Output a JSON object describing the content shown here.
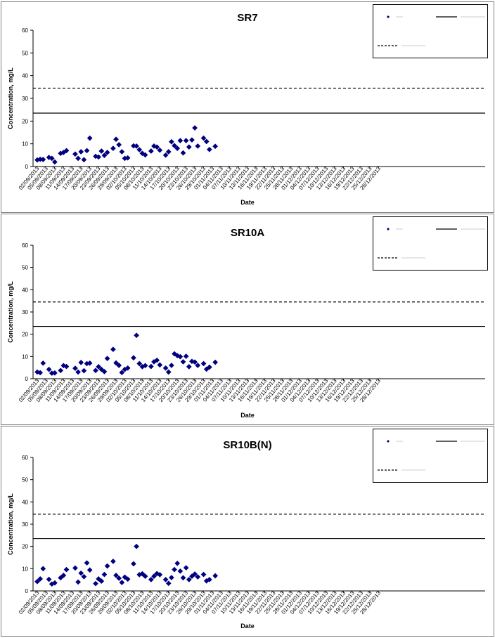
{
  "chart_data": [
    {
      "type": "scatter",
      "title": "SR7",
      "xlabel": "Date",
      "ylabel": "Concentration, mg/L",
      "ylim": [
        0,
        60
      ],
      "yticks": [
        0,
        10,
        20,
        30,
        40,
        50,
        60
      ],
      "grid": false,
      "legend_position": "top-right",
      "xticks": [
        "02/09/2013",
        "05/09/2013",
        "08/09/2013",
        "11/09/2013",
        "14/09/2013",
        "17/09/2013",
        "20/09/2013",
        "23/09/2013",
        "26/09/2013",
        "29/09/2013",
        "02/10/2013",
        "05/10/2013",
        "08/10/2013",
        "11/10/2013",
        "14/10/2013",
        "17/10/2013",
        "20/10/2013",
        "23/10/2013",
        "26/10/2013",
        "29/10/2013",
        "01/11/2013",
        "04/11/2013",
        "07/11/2013",
        "10/11/2013",
        "13/11/2013",
        "16/11/2013",
        "19/11/2013",
        "22/11/2013",
        "25/11/2013",
        "28/11/2013",
        "01/12/2013",
        "04/12/2013",
        "07/12/2013",
        "10/12/2013",
        "13/12/2013",
        "16/12/2013",
        "19/12/2013",
        "22/12/2013",
        "25/12/2013",
        "28/12/2013"
      ],
      "reference_lines": [
        {
          "style": "dashed",
          "value": 34.5
        },
        {
          "style": "solid",
          "value": 23.5
        }
      ],
      "series": [
        {
          "marker": "diamond",
          "color": "#000080",
          "points": [
            {
              "x": "02/09/2013",
              "y": 2.9
            },
            {
              "x": "03/09/2013",
              "y": 3.2
            },
            {
              "x": "04/09/2013",
              "y": 3.1
            },
            {
              "x": "06/09/2013",
              "y": 4.0
            },
            {
              "x": "07/09/2013",
              "y": 3.6
            },
            {
              "x": "08/09/2013",
              "y": 2.0
            },
            {
              "x": "10/09/2013",
              "y": 5.8
            },
            {
              "x": "11/09/2013",
              "y": 6.2
            },
            {
              "x": "12/09/2013",
              "y": 7.0
            },
            {
              "x": "15/09/2013",
              "y": 5.5
            },
            {
              "x": "16/09/2013",
              "y": 3.6
            },
            {
              "x": "17/09/2013",
              "y": 6.5
            },
            {
              "x": "18/09/2013",
              "y": 3.0
            },
            {
              "x": "19/09/2013",
              "y": 7.0
            },
            {
              "x": "20/09/2013",
              "y": 12.5
            },
            {
              "x": "22/09/2013",
              "y": 4.5
            },
            {
              "x": "23/09/2013",
              "y": 4.2
            },
            {
              "x": "24/09/2013",
              "y": 6.8
            },
            {
              "x": "25/09/2013",
              "y": 4.9
            },
            {
              "x": "26/09/2013",
              "y": 6.2
            },
            {
              "x": "28/09/2013",
              "y": 8.0
            },
            {
              "x": "29/09/2013",
              "y": 12.0
            },
            {
              "x": "30/09/2013",
              "y": 9.6
            },
            {
              "x": "01/10/2013",
              "y": 6.5
            },
            {
              "x": "02/10/2013",
              "y": 3.6
            },
            {
              "x": "03/10/2013",
              "y": 3.8
            },
            {
              "x": "05/10/2013",
              "y": 9.1
            },
            {
              "x": "06/10/2013",
              "y": 9.0
            },
            {
              "x": "07/10/2013",
              "y": 7.4
            },
            {
              "x": "08/10/2013",
              "y": 5.8
            },
            {
              "x": "09/10/2013",
              "y": 5.1
            },
            {
              "x": "11/10/2013",
              "y": 6.8
            },
            {
              "x": "12/10/2013",
              "y": 9.0
            },
            {
              "x": "13/10/2013",
              "y": 8.6
            },
            {
              "x": "14/10/2013",
              "y": 7.2
            },
            {
              "x": "16/10/2013",
              "y": 5.0
            },
            {
              "x": "17/10/2013",
              "y": 6.5
            },
            {
              "x": "18/10/2013",
              "y": 10.9
            },
            {
              "x": "19/10/2013",
              "y": 9.2
            },
            {
              "x": "20/10/2013",
              "y": 8.0
            },
            {
              "x": "21/10/2013",
              "y": 11.4
            },
            {
              "x": "22/10/2013",
              "y": 6.0
            },
            {
              "x": "23/10/2013",
              "y": 11.4
            },
            {
              "x": "24/10/2013",
              "y": 8.6
            },
            {
              "x": "25/10/2013",
              "y": 11.7
            },
            {
              "x": "26/10/2013",
              "y": 17.0
            },
            {
              "x": "27/10/2013",
              "y": 9.0
            },
            {
              "x": "29/10/2013",
              "y": 12.5
            },
            {
              "x": "30/10/2013",
              "y": 11.0
            },
            {
              "x": "31/10/2013",
              "y": 7.5
            },
            {
              "x": "02/11/2013",
              "y": 8.9
            }
          ]
        }
      ]
    },
    {
      "type": "scatter",
      "title": "SR10A",
      "xlabel": "Date",
      "ylabel": "Concentration, mg/L",
      "ylim": [
        0,
        60
      ],
      "yticks": [
        0,
        10,
        20,
        30,
        40,
        50,
        60
      ],
      "grid": false,
      "legend_position": "top-right",
      "xticks": [
        "02/09/2013",
        "05/09/2013",
        "08/09/2013",
        "11/09/2013",
        "14/09/2013",
        "17/09/2013",
        "20/09/2013",
        "23/09/2013",
        "26/09/2013",
        "29/09/2013",
        "02/10/2013",
        "05/10/2013",
        "08/10/2013",
        "11/10/2013",
        "14/10/2013",
        "17/10/2013",
        "20/10/2013",
        "23/10/2013",
        "26/10/2013",
        "29/10/2013",
        "01/11/2013",
        "04/11/2013",
        "07/11/2013",
        "10/11/2013",
        "13/11/2013",
        "16/11/2013",
        "19/11/2013",
        "22/11/2013",
        "25/11/2013",
        "28/11/2013",
        "01/12/2013",
        "04/12/2013",
        "07/12/2013",
        "10/12/2013",
        "13/12/2013",
        "16/12/2013",
        "19/12/2013",
        "22/12/2013",
        "25/12/2013",
        "28/12/2013"
      ],
      "reference_lines": [
        {
          "style": "dashed",
          "value": 34.5
        },
        {
          "style": "solid",
          "value": 23.5
        }
      ],
      "series": [
        {
          "marker": "diamond",
          "color": "#000080",
          "points": [
            {
              "x": "02/09/2013",
              "y": 3.0
            },
            {
              "x": "03/09/2013",
              "y": 2.7
            },
            {
              "x": "04/09/2013",
              "y": 7.0
            },
            {
              "x": "06/09/2013",
              "y": 4.2
            },
            {
              "x": "07/09/2013",
              "y": 2.5
            },
            {
              "x": "08/09/2013",
              "y": 2.6
            },
            {
              "x": "10/09/2013",
              "y": 3.7
            },
            {
              "x": "11/09/2013",
              "y": 5.9
            },
            {
              "x": "12/09/2013",
              "y": 5.5
            },
            {
              "x": "15/09/2013",
              "y": 4.7
            },
            {
              "x": "16/09/2013",
              "y": 3.0
            },
            {
              "x": "17/09/2013",
              "y": 7.3
            },
            {
              "x": "18/09/2013",
              "y": 3.6
            },
            {
              "x": "19/09/2013",
              "y": 6.8
            },
            {
              "x": "20/09/2013",
              "y": 7.0
            },
            {
              "x": "22/09/2013",
              "y": 3.7
            },
            {
              "x": "23/09/2013",
              "y": 5.4
            },
            {
              "x": "24/09/2013",
              "y": 4.2
            },
            {
              "x": "25/09/2013",
              "y": 3.2
            },
            {
              "x": "26/09/2013",
              "y": 9.1
            },
            {
              "x": "28/09/2013",
              "y": 13.2
            },
            {
              "x": "29/09/2013",
              "y": 7.1
            },
            {
              "x": "30/09/2013",
              "y": 6.0
            },
            {
              "x": "01/10/2013",
              "y": 2.8
            },
            {
              "x": "02/10/2013",
              "y": 4.2
            },
            {
              "x": "03/10/2013",
              "y": 4.8
            },
            {
              "x": "05/10/2013",
              "y": 9.4
            },
            {
              "x": "06/10/2013",
              "y": 19.5
            },
            {
              "x": "07/10/2013",
              "y": 6.8
            },
            {
              "x": "08/10/2013",
              "y": 5.4
            },
            {
              "x": "09/10/2013",
              "y": 5.9
            },
            {
              "x": "11/10/2013",
              "y": 5.5
            },
            {
              "x": "12/10/2013",
              "y": 7.6
            },
            {
              "x": "13/10/2013",
              "y": 8.3
            },
            {
              "x": "14/10/2013",
              "y": 6.2
            },
            {
              "x": "16/10/2013",
              "y": 4.8
            },
            {
              "x": "17/10/2013",
              "y": 3.0
            },
            {
              "x": "18/10/2013",
              "y": 6.0
            },
            {
              "x": "19/10/2013",
              "y": 11.2
            },
            {
              "x": "20/10/2013",
              "y": 10.4
            },
            {
              "x": "21/10/2013",
              "y": 9.9
            },
            {
              "x": "22/10/2013",
              "y": 7.6
            },
            {
              "x": "23/10/2013",
              "y": 10.1
            },
            {
              "x": "24/10/2013",
              "y": 5.4
            },
            {
              "x": "25/10/2013",
              "y": 7.8
            },
            {
              "x": "26/10/2013",
              "y": 7.5
            },
            {
              "x": "27/10/2013",
              "y": 6.0
            },
            {
              "x": "29/10/2013",
              "y": 6.8
            },
            {
              "x": "30/10/2013",
              "y": 4.3
            },
            {
              "x": "31/10/2013",
              "y": 5.2
            },
            {
              "x": "02/11/2013",
              "y": 7.4
            }
          ]
        }
      ]
    },
    {
      "type": "scatter",
      "title": "SR10B(N)",
      "xlabel": "Date",
      "ylabel": "Concentration, mg/L",
      "ylim": [
        0,
        60
      ],
      "yticks": [
        0,
        10,
        20,
        30,
        40,
        50,
        60
      ],
      "grid": false,
      "legend_position": "top-right",
      "xticks": [
        "02/09/2013",
        "05/09/2013",
        "08/09/2013",
        "11/09/2013",
        "14/09/2013",
        "17/09/2013",
        "20/09/2013",
        "23/09/2013",
        "26/09/2013",
        "29/09/2013",
        "02/10/2013",
        "05/10/2013",
        "08/10/2013",
        "11/10/2013",
        "14/10/2013",
        "17/10/2013",
        "20/10/2013",
        "23/10/2013",
        "26/10/2013",
        "29/10/2013",
        "01/11/2013",
        "04/11/2013",
        "07/11/2013",
        "10/11/2013",
        "13/11/2013",
        "16/11/2013",
        "19/11/2013",
        "22/11/2013",
        "25/11/2013",
        "28/11/2013",
        "01/12/2013",
        "04/12/2013",
        "07/12/2013",
        "10/12/2013",
        "13/12/2013",
        "16/12/2013",
        "19/12/2013",
        "22/12/2013",
        "25/12/2013",
        "28/12/2013"
      ],
      "reference_lines": [
        {
          "style": "dashed",
          "value": 34.5
        },
        {
          "style": "solid",
          "value": 23.5
        }
      ],
      "series": [
        {
          "marker": "diamond",
          "color": "#000080",
          "points": [
            {
              "x": "02/09/2013",
              "y": 4.2
            },
            {
              "x": "03/09/2013",
              "y": 5.4
            },
            {
              "x": "04/09/2013",
              "y": 10.0
            },
            {
              "x": "06/09/2013",
              "y": 5.2
            },
            {
              "x": "07/09/2013",
              "y": 3.1
            },
            {
              "x": "08/09/2013",
              "y": 3.6
            },
            {
              "x": "10/09/2013",
              "y": 5.9
            },
            {
              "x": "11/09/2013",
              "y": 7.0
            },
            {
              "x": "12/09/2013",
              "y": 9.6
            },
            {
              "x": "15/09/2013",
              "y": 10.3
            },
            {
              "x": "16/09/2013",
              "y": 4.0
            },
            {
              "x": "17/09/2013",
              "y": 8.0
            },
            {
              "x": "18/09/2013",
              "y": 6.4
            },
            {
              "x": "19/09/2013",
              "y": 12.6
            },
            {
              "x": "20/09/2013",
              "y": 9.4
            },
            {
              "x": "22/09/2013",
              "y": 3.3
            },
            {
              "x": "23/09/2013",
              "y": 5.4
            },
            {
              "x": "24/09/2013",
              "y": 4.4
            },
            {
              "x": "25/09/2013",
              "y": 7.4
            },
            {
              "x": "26/09/2013",
              "y": 11.2
            },
            {
              "x": "28/09/2013",
              "y": 13.3
            },
            {
              "x": "29/09/2013",
              "y": 7.0
            },
            {
              "x": "30/09/2013",
              "y": 5.7
            },
            {
              "x": "01/10/2013",
              "y": 3.8
            },
            {
              "x": "02/10/2013",
              "y": 6.2
            },
            {
              "x": "03/10/2013",
              "y": 5.3
            },
            {
              "x": "05/10/2013",
              "y": 12.2
            },
            {
              "x": "06/10/2013",
              "y": 20.0
            },
            {
              "x": "07/10/2013",
              "y": 7.3
            },
            {
              "x": "08/10/2013",
              "y": 7.7
            },
            {
              "x": "09/10/2013",
              "y": 6.6
            },
            {
              "x": "11/10/2013",
              "y": 5.1
            },
            {
              "x": "12/10/2013",
              "y": 6.6
            },
            {
              "x": "13/10/2013",
              "y": 7.8
            },
            {
              "x": "14/10/2013",
              "y": 7.3
            },
            {
              "x": "16/10/2013",
              "y": 5.1
            },
            {
              "x": "17/10/2013",
              "y": 3.4
            },
            {
              "x": "18/10/2013",
              "y": 6.0
            },
            {
              "x": "19/10/2013",
              "y": 9.6
            },
            {
              "x": "20/10/2013",
              "y": 12.4
            },
            {
              "x": "21/10/2013",
              "y": 8.9
            },
            {
              "x": "22/10/2013",
              "y": 5.9
            },
            {
              "x": "23/10/2013",
              "y": 10.4
            },
            {
              "x": "24/10/2013",
              "y": 5.1
            },
            {
              "x": "25/10/2013",
              "y": 6.6
            },
            {
              "x": "26/10/2013",
              "y": 7.6
            },
            {
              "x": "27/10/2013",
              "y": 6.3
            },
            {
              "x": "29/10/2013",
              "y": 7.4
            },
            {
              "x": "30/10/2013",
              "y": 4.5
            },
            {
              "x": "31/10/2013",
              "y": 5.1
            },
            {
              "x": "02/11/2013",
              "y": 6.8
            }
          ]
        }
      ]
    }
  ]
}
